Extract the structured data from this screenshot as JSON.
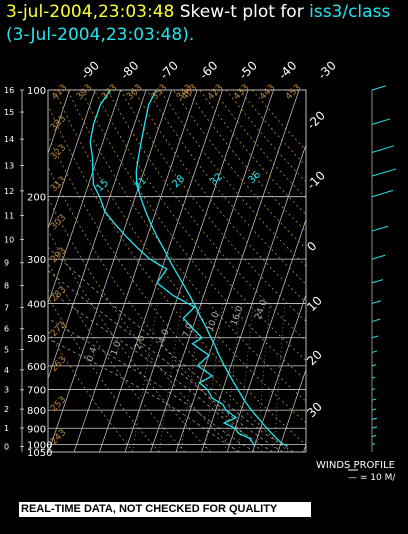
{
  "title": {
    "datetime": "3-jul-2004,23:03:48",
    "label": "Skew-t plot for",
    "station": "iss3/class",
    "subtitle": "(3-Jul-2004,23:03:48)."
  },
  "warning": "REAL-TIME DATA, NOT CHECKED FOR QUALITY",
  "winds_profile": {
    "title": "WINDS PROFILE",
    "scale": "— = 10 M/"
  },
  "colors": {
    "title_date": "#ffff33",
    "accent": "#22e5f0",
    "grid": "#cfcfcf",
    "adiabat": "#c08a3c",
    "moist": "#b0b0b0",
    "trace": "#22e5f0"
  },
  "chart_data": {
    "type": "line",
    "diagram": "skew-t",
    "pressure_ticks": [
      100,
      200,
      300,
      400,
      500,
      600,
      700,
      800,
      900,
      1000,
      1050
    ],
    "height_ticks": [
      0,
      1,
      2,
      3,
      4,
      5,
      6,
      7,
      8,
      9,
      10,
      11,
      12,
      13,
      14,
      15,
      16
    ],
    "top_temperature_labels": [
      "-90",
      "-80",
      "-70",
      "-60",
      "-50",
      "-40",
      "-30"
    ],
    "right_temperature_labels": [
      "-20",
      "-10",
      "0",
      "10",
      "20",
      "30"
    ],
    "mixing_ratio_labels": [
      "0.4",
      "1.0",
      "2.0",
      "4.0",
      "7.0",
      "10.0",
      "16.0",
      "24.0"
    ],
    "theta_labels": [
      "413",
      "393",
      "373",
      "363",
      "353",
      "343",
      "333",
      "323",
      "313",
      "303",
      "293",
      "283",
      "273",
      "263",
      "253",
      "243",
      "403",
      "423",
      "433",
      "443",
      "453"
    ],
    "theta_e_labels": [
      "15",
      "21",
      "28",
      "32",
      "36"
    ],
    "series": [
      {
        "key": "temperature",
        "pressure_hPa": [
          1012,
          990,
          960,
          930,
          900,
          870,
          840,
          800,
          770,
          740,
          700,
          670,
          640,
          600,
          560,
          520,
          500,
          470,
          440,
          410,
          380,
          350,
          320,
          300,
          280,
          260,
          240,
          220,
          200,
          185,
          170,
          155,
          140,
          125,
          110,
          100
        ],
        "temp_C": [
          33,
          30,
          27.5,
          25,
          22.5,
          20,
          17.5,
          14,
          11.5,
          9,
          6,
          3.5,
          1,
          -2.5,
          -6,
          -9.5,
          -11.5,
          -14.5,
          -18,
          -21.5,
          -25.5,
          -30,
          -35,
          -38.5,
          -42,
          -46,
          -50,
          -54,
          -58,
          -61,
          -63,
          -64,
          -65,
          -66,
          -67,
          -66
        ]
      },
      {
        "key": "dewpoint",
        "pressure_hPa": [
          1012,
          990,
          960,
          930,
          900,
          870,
          840,
          800,
          770,
          740,
          700,
          670,
          640,
          600,
          560,
          520,
          500,
          470,
          440,
          410,
          380,
          350,
          320,
          300,
          280,
          260,
          240,
          220,
          200,
          185,
          170,
          155,
          140,
          125,
          110,
          100
        ],
        "temp_C": [
          20,
          19,
          17,
          12,
          10,
          5,
          9,
          4,
          2,
          -3,
          -6,
          -10,
          -6,
          -13,
          -10,
          -18,
          -15,
          -20,
          -25,
          -22,
          -32,
          -40,
          -38,
          -46,
          -52,
          -58,
          -64,
          -70,
          -74,
          -78,
          -80,
          -82,
          -85,
          -86,
          -86,
          -84
        ]
      }
    ],
    "wind_profile": {
      "pressure_hPa": [
        1000,
        950,
        900,
        850,
        800,
        750,
        700,
        650,
        600,
        550,
        500,
        450,
        400,
        350,
        300,
        250,
        200,
        175,
        150,
        125,
        100
      ],
      "speed_ms": [
        3,
        4,
        5,
        5,
        4,
        4,
        3,
        3,
        4,
        5,
        6,
        8,
        9,
        11,
        13,
        16,
        21,
        24,
        22,
        18,
        14
      ]
    }
  }
}
